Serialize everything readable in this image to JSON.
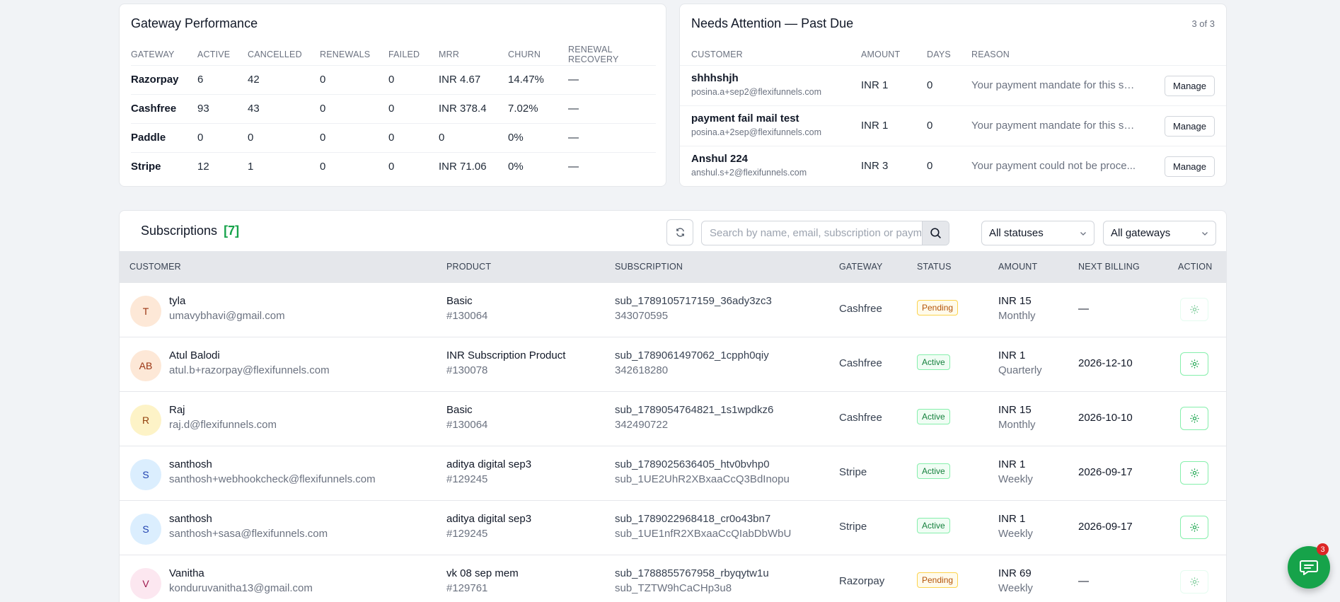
{
  "gateway_performance": {
    "title": "Gateway Performance",
    "columns": [
      "GATEWAY",
      "ACTIVE",
      "CANCELLED",
      "RENEWALS",
      "FAILED",
      "MRR",
      "CHURN",
      "RENEWAL RECOVERY"
    ],
    "rows": [
      [
        "Razorpay",
        "6",
        "42",
        "0",
        "0",
        "INR 4.67",
        "14.47%",
        "—"
      ],
      [
        "Cashfree",
        "93",
        "43",
        "0",
        "0",
        "INR 378.4",
        "7.02%",
        "—"
      ],
      [
        "Paddle",
        "0",
        "0",
        "0",
        "0",
        "0",
        "0%",
        "—"
      ],
      [
        "Stripe",
        "12",
        "1",
        "0",
        "0",
        "INR 71.06",
        "0%",
        "—"
      ]
    ]
  },
  "needs_attention": {
    "title": "Needs Attention — Past Due",
    "count_label": "3 of 3",
    "columns": [
      "CUSTOMER",
      "AMOUNT",
      "DAYS",
      "REASON"
    ],
    "manage_label": "Manage",
    "rows": [
      {
        "name": "shhhshjh",
        "email": "posina.a+sep2@flexifunnels.com",
        "amount": "INR 1",
        "days": "0",
        "reason": "Your payment mandate for this su..."
      },
      {
        "name": "payment fail mail test",
        "email": "posina.a+2sep@flexifunnels.com",
        "amount": "INR 1",
        "days": "0",
        "reason": "Your payment mandate for this su..."
      },
      {
        "name": "Anshul 224",
        "email": "anshul.s+2@flexifunnels.com",
        "amount": "INR 3",
        "days": "0",
        "reason": "Your payment could not be proce..."
      }
    ]
  },
  "subscriptions": {
    "title": "Subscriptions",
    "count": "[7]",
    "search_placeholder": "Search by name, email, subscription or payment ID",
    "status_filter": "All statuses",
    "gateway_filter": "All gateways",
    "columns": [
      "CUSTOMER",
      "PRODUCT",
      "SUBSCRIPTION",
      "GATEWAY",
      "STATUS",
      "AMOUNT",
      "NEXT BILLING",
      "ACTION"
    ],
    "rows": [
      {
        "initials": "T",
        "avatar_bg": "#fde8d7",
        "avatar_fg": "#9a3412",
        "name": "tyla",
        "email": "umavybhavi@gmail.com",
        "product": "Basic",
        "product_id": "#130064",
        "sub_id": "sub_1789105717159_36ady3zc3",
        "sub_ref": "343070595",
        "gateway": "Cashfree",
        "status": "Pending",
        "amount": "INR 15",
        "interval": "Monthly",
        "next_billing": "—"
      },
      {
        "initials": "AB",
        "avatar_bg": "#fde8d7",
        "avatar_fg": "#9a3412",
        "name": "Atul Balodi",
        "email": "atul.b+razorpay@flexifunnels.com",
        "product": "INR Subscription Product",
        "product_id": "#130078",
        "sub_id": "sub_1789061497062_1cpph0qiy",
        "sub_ref": "342618280",
        "gateway": "Cashfree",
        "status": "Active",
        "amount": "INR 1",
        "interval": "Quarterly",
        "next_billing": "2026-12-10"
      },
      {
        "initials": "R",
        "avatar_bg": "#fdf3c7",
        "avatar_fg": "#92400e",
        "name": "Raj",
        "email": "raj.d@flexifunnels.com",
        "product": "Basic",
        "product_id": "#130064",
        "sub_id": "sub_1789054764821_1s1wpdkz6",
        "sub_ref": "342490722",
        "gateway": "Cashfree",
        "status": "Active",
        "amount": "INR 15",
        "interval": "Monthly",
        "next_billing": "2026-10-10"
      },
      {
        "initials": "S",
        "avatar_bg": "#dbeefe",
        "avatar_fg": "#1e40af",
        "name": "santhosh",
        "email": "santhosh+webhookcheck@flexifunnels.com",
        "product": "aditya digital sep3",
        "product_id": "#129245",
        "sub_id": "sub_1789025636405_htv0bvhp0",
        "sub_ref": "sub_1UE2UhR2XBxaaCcQ3BdInopu",
        "gateway": "Stripe",
        "status": "Active",
        "amount": "INR 1",
        "interval": "Weekly",
        "next_billing": "2026-09-17"
      },
      {
        "initials": "S",
        "avatar_bg": "#dbeefe",
        "avatar_fg": "#1e40af",
        "name": "santhosh",
        "email": "santhosh+sasa@flexifunnels.com",
        "product": "aditya digital sep3",
        "product_id": "#129245",
        "sub_id": "sub_1789022968418_cr0o43bn7",
        "sub_ref": "sub_1UE1nfR2XBxaaCcQIabDbWbU",
        "gateway": "Stripe",
        "status": "Active",
        "amount": "INR 1",
        "interval": "Weekly",
        "next_billing": "2026-09-17"
      },
      {
        "initials": "V",
        "avatar_bg": "#fce7f0",
        "avatar_fg": "#9d174d",
        "name": "Vanitha",
        "email": "konduruvanitha13@gmail.com",
        "product": "vk 08 sep mem",
        "product_id": "#129761",
        "sub_id": "sub_1788855767958_rbyqytw1u",
        "sub_ref": "sub_TZTW9hCaCHp3u8",
        "gateway": "Razorpay",
        "status": "Pending",
        "amount": "INR 69",
        "interval": "Weekly",
        "next_billing": "—"
      }
    ]
  },
  "chat": {
    "badge": "3"
  },
  "colors": {
    "accent": "#16a34a",
    "pending": "#b45309",
    "danger": "#dc2626"
  },
  "icons": [
    "refresh-icon",
    "search-icon",
    "chevron-down-icon",
    "gear-icon",
    "chat-icon"
  ]
}
